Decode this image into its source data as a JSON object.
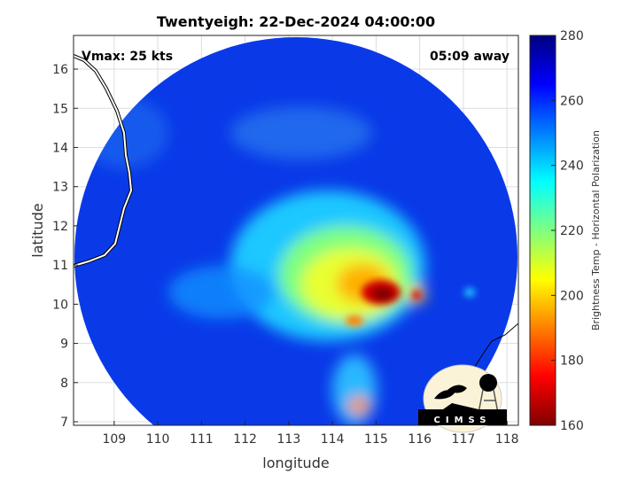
{
  "title": "Twentyeigh: 22-Dec-2024 04:00:00",
  "annotations": {
    "vmax": "Vmax: 25 kts",
    "time_away": "05:09 away"
  },
  "logo": {
    "text": "CIMSS"
  },
  "chart_data": {
    "type": "heatmap",
    "xlabel": "longitude",
    "ylabel": "latitude",
    "xlim": [
      108.07,
      118.26
    ],
    "ylim": [
      6.91,
      16.86
    ],
    "xticks": [
      109,
      110,
      111,
      112,
      113,
      114,
      115,
      116,
      117,
      118
    ],
    "yticks": [
      7,
      8,
      9,
      10,
      11,
      12,
      13,
      14,
      15,
      16
    ],
    "grid": true,
    "colorbar": {
      "label": "Brightness Temp - Horizontal Polarization",
      "range": [
        160,
        280
      ],
      "ticks": [
        160,
        180,
        200,
        220,
        240,
        260,
        280
      ],
      "colormap": "jet"
    },
    "swath_center": [
      113.1,
      10.9
    ],
    "coldest_core": {
      "lon": 115.1,
      "lat": 10.3,
      "value": 165
    }
  }
}
